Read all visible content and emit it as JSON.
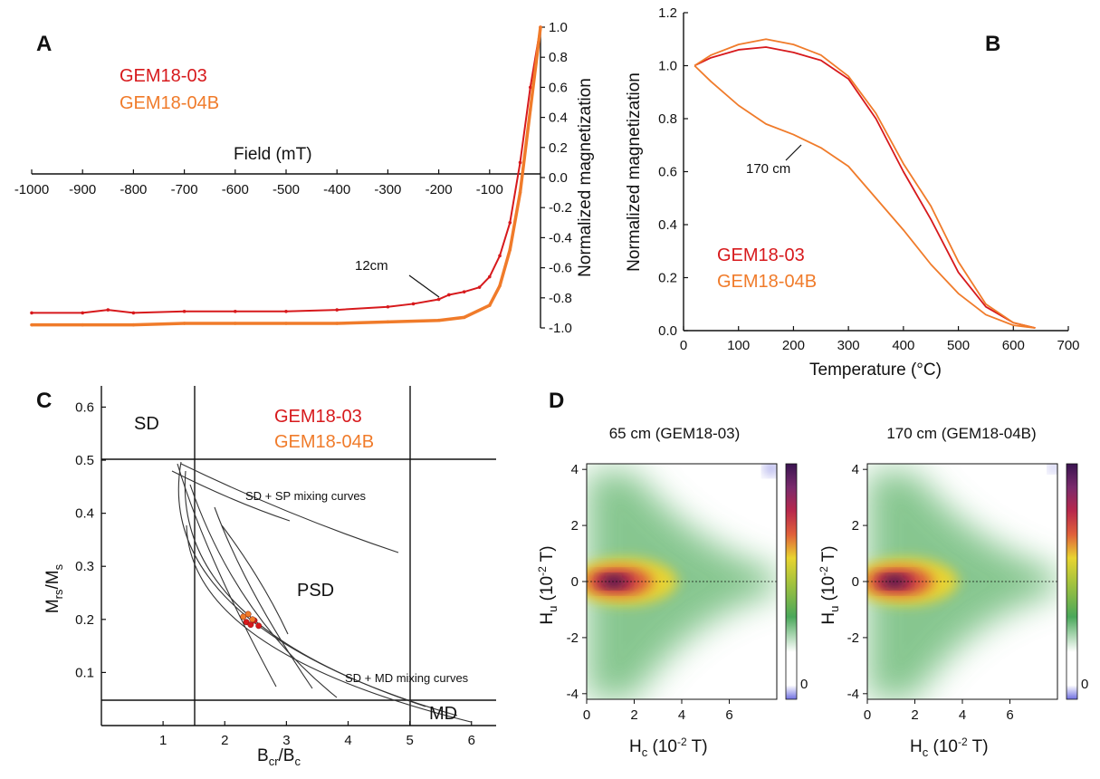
{
  "colors": {
    "sample_a": "#d7191c",
    "sample_b": "#f07b2a",
    "axis": "#111111"
  },
  "legend": {
    "sample_a": "GEM18-03",
    "sample_b": "GEM18-04B"
  },
  "panels": {
    "a": "A",
    "b": "B",
    "c": "C",
    "d": "D"
  },
  "panel_a": {
    "xlabel": "Field (mT)",
    "ylabel": "Normalized magnetization",
    "xticks": [
      "-1000",
      "-900",
      "-800",
      "-700",
      "-600",
      "-500",
      "-400",
      "-300",
      "-200",
      "-100"
    ],
    "yticks": [
      "1.0",
      "0.8",
      "0.6",
      "0.4",
      "0.2",
      "0.0",
      "-0.2",
      "-0.4",
      "-0.6",
      "-0.8",
      "-1.0"
    ],
    "annotation": "12cm"
  },
  "panel_b": {
    "xlabel": "Temperature (°C)",
    "ylabel": "Normalized magnetization",
    "xticks": [
      "0",
      "100",
      "200",
      "300",
      "400",
      "500",
      "600",
      "700"
    ],
    "yticks": [
      "0.0",
      "0.2",
      "0.4",
      "0.6",
      "0.8",
      "1.0",
      "1.2"
    ],
    "annotation": "170 cm"
  },
  "panel_c": {
    "xlabel_main": "B",
    "xlabel_sub1": "cr",
    "xlabel_mid": "/B",
    "xlabel_sub2": "c",
    "ylabel_main": "M",
    "ylabel_sub1": "rs",
    "ylabel_mid": "/M",
    "ylabel_sub2": "s",
    "xticks": [
      "1",
      "2",
      "3",
      "4",
      "5",
      "6"
    ],
    "yticks": [
      "0.1",
      "0.2",
      "0.3",
      "0.4",
      "0.5",
      "0.6"
    ],
    "regions": {
      "sd": "SD",
      "psd": "PSD",
      "md": "MD"
    },
    "curve_labels": {
      "sp": "SD + SP mixing curves",
      "md": "SD + MD mixing curves"
    }
  },
  "panel_d": {
    "left_title": "65 cm (GEM18-03)",
    "right_title": "170 cm (GEM18-04B)",
    "xlabel_main": "H",
    "xlabel_sub": "c",
    "xlabel_unit_pre": " (10",
    "xlabel_exp": "-2",
    "xlabel_unit_post": " T)",
    "ylabel_main": "H",
    "ylabel_sub": "u",
    "ylabel_unit_pre": " (10",
    "ylabel_exp": "-2",
    "ylabel_unit_post": " T)",
    "xticks": [
      "0",
      "2",
      "4",
      "6"
    ],
    "yticks": [
      "4",
      "2",
      "0",
      "-2",
      "-4"
    ],
    "colorbar_label": "0"
  },
  "chart_data": [
    {
      "type": "line",
      "panel": "A",
      "xlabel": "Field (mT)",
      "ylabel": "Normalized magnetization",
      "xlim": [
        -1000,
        0
      ],
      "ylim": [
        -1.0,
        1.0
      ],
      "series": [
        {
          "name": "GEM18-03",
          "x": [
            -1000,
            -900,
            -850,
            -800,
            -700,
            -600,
            -500,
            -400,
            -300,
            -250,
            -200,
            -180,
            -150,
            -120,
            -100,
            -80,
            -60,
            -40,
            -20,
            0
          ],
          "y": [
            -0.9,
            -0.9,
            -0.88,
            -0.9,
            -0.89,
            -0.89,
            -0.89,
            -0.88,
            -0.86,
            -0.84,
            -0.81,
            -0.78,
            -0.76,
            -0.73,
            -0.66,
            -0.52,
            -0.3,
            0.1,
            0.6,
            1.0
          ]
        },
        {
          "name": "GEM18-04B",
          "x": [
            -1000,
            -900,
            -800,
            -700,
            -600,
            -500,
            -400,
            -300,
            -200,
            -150,
            -100,
            -80,
            -60,
            -40,
            -20,
            0
          ],
          "y": [
            -0.98,
            -0.98,
            -0.98,
            -0.97,
            -0.97,
            -0.97,
            -0.97,
            -0.96,
            -0.95,
            -0.93,
            -0.85,
            -0.72,
            -0.48,
            -0.1,
            0.45,
            1.0
          ]
        }
      ]
    },
    {
      "type": "line",
      "panel": "B",
      "xlabel": "Temperature (°C)",
      "ylabel": "Normalized magnetization",
      "xlim": [
        0,
        700
      ],
      "ylim": [
        0.0,
        1.2
      ],
      "series": [
        {
          "name": "GEM18-03",
          "x": [
            20,
            50,
            100,
            150,
            200,
            250,
            300,
            350,
            400,
            450,
            500,
            550,
            600,
            640
          ],
          "y": [
            1.0,
            1.03,
            1.06,
            1.07,
            1.05,
            1.02,
            0.95,
            0.8,
            0.6,
            0.42,
            0.22,
            0.09,
            0.03,
            0.01
          ]
        },
        {
          "name": "GEM18-04B",
          "x": [
            20,
            50,
            100,
            150,
            200,
            250,
            300,
            350,
            400,
            450,
            500,
            550,
            600,
            640
          ],
          "y": [
            1.0,
            1.04,
            1.08,
            1.1,
            1.08,
            1.04,
            0.96,
            0.82,
            0.63,
            0.47,
            0.26,
            0.1,
            0.03,
            0.01
          ]
        },
        {
          "name": "GEM18-04B",
          "x": [
            20,
            50,
            100,
            150,
            200,
            250,
            300,
            350,
            400,
            450,
            500,
            550,
            600,
            640
          ],
          "y": [
            1.0,
            0.94,
            0.85,
            0.78,
            0.74,
            0.69,
            0.62,
            0.5,
            0.38,
            0.25,
            0.14,
            0.06,
            0.02,
            0.01
          ]
        }
      ]
    },
    {
      "type": "scatter",
      "panel": "C",
      "xlim": [
        0,
        6.4
      ],
      "ylim": [
        0,
        0.64
      ],
      "series": [
        {
          "name": "GEM18-03",
          "x": [
            2.35,
            2.42,
            2.48,
            2.55
          ],
          "y": [
            0.195,
            0.19,
            0.198,
            0.188
          ]
        },
        {
          "name": "GEM18-04B",
          "x": [
            2.3,
            2.38,
            2.45
          ],
          "y": [
            0.205,
            0.21,
            0.2
          ]
        }
      ]
    },
    {
      "type": "heatmap",
      "panel": "D",
      "xlim": [
        0,
        8
      ],
      "ylim": [
        -4.2,
        4.2
      ],
      "peak": {
        "x": 1.2,
        "y": 0
      },
      "maps": [
        "65 cm (GEM18-03)",
        "170 cm (GEM18-04B)"
      ]
    }
  ]
}
